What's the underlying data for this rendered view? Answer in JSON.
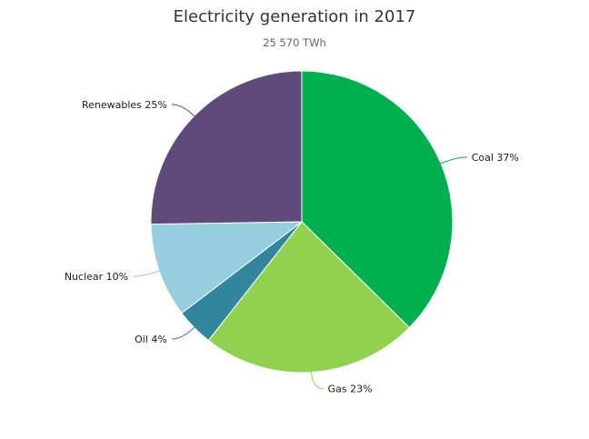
{
  "chart_data": {
    "type": "pie",
    "title": "Electricity generation in 2017",
    "subtitle": "25 570 TWh",
    "slices": [
      {
        "name": "Coal",
        "value": 37,
        "label": "Coal 37%",
        "color": "#00b050"
      },
      {
        "name": "Gas",
        "value": 23,
        "label": "Gas 23%",
        "color": "#92d050"
      },
      {
        "name": "Oil",
        "value": 4,
        "label": "Oil 4%",
        "color": "#31859c"
      },
      {
        "name": "Nuclear",
        "value": 10,
        "label": "Nuclear 10%",
        "color": "#96cddf"
      },
      {
        "name": "Renewables",
        "value": 25,
        "label": "Renewables 25%",
        "color": "#604a7b"
      }
    ]
  }
}
